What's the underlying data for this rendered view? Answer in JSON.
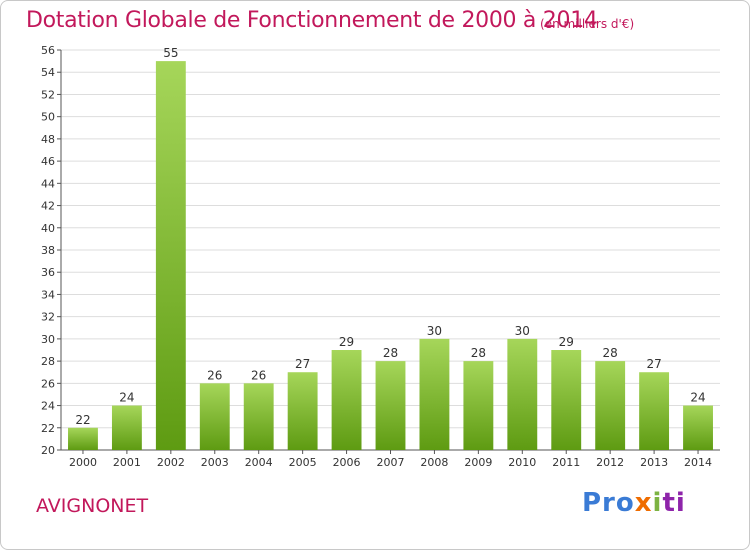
{
  "header": {
    "title": "Dotation Globale de Fonctionnement de 2000 à 2014",
    "unit": "(en milliers d'€)"
  },
  "footer": {
    "commune": "AVIGNONET",
    "logo_parts": [
      "Pro",
      "x",
      "i",
      "ti"
    ]
  },
  "colors": {
    "title": "#c2185b",
    "bar_light": "#a6d65a",
    "bar_dark": "#5e9b12",
    "grid": "#dddddd"
  },
  "chart_data": {
    "type": "bar",
    "title": "Dotation Globale de Fonctionnement de 2000 à 2014",
    "xlabel": "",
    "ylabel": "",
    "ylim": [
      20,
      56
    ],
    "ytick_step": 2,
    "grid": true,
    "categories": [
      "2000",
      "2001",
      "2002",
      "2003",
      "2004",
      "2005",
      "2006",
      "2007",
      "2008",
      "2009",
      "2010",
      "2011",
      "2012",
      "2013",
      "2014"
    ],
    "values": [
      22,
      24,
      55,
      26,
      26,
      27,
      29,
      28,
      30,
      28,
      30,
      29,
      28,
      27,
      24
    ]
  }
}
